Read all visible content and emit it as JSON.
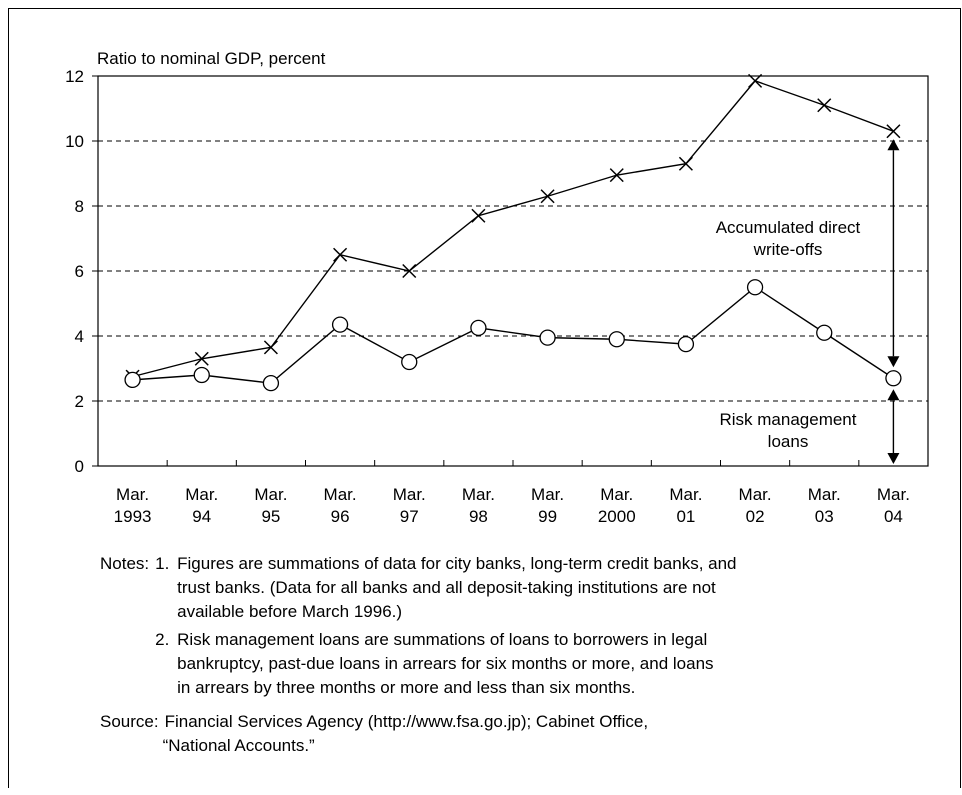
{
  "chart_data": {
    "type": "line",
    "ylabel": "Ratio to nominal GDP, percent",
    "ylim": [
      0,
      12
    ],
    "yticks": [
      0,
      2,
      4,
      6,
      8,
      10,
      12
    ],
    "grid": "horizontal dashed at 2, 4, 6, 8, 10",
    "categories": [
      [
        "Mar.",
        "1993"
      ],
      [
        "Mar.",
        "94"
      ],
      [
        "Mar.",
        "95"
      ],
      [
        "Mar.",
        "96"
      ],
      [
        "Mar.",
        "97"
      ],
      [
        "Mar.",
        "98"
      ],
      [
        "Mar.",
        "99"
      ],
      [
        "Mar.",
        "2000"
      ],
      [
        "Mar.",
        "01"
      ],
      [
        "Mar.",
        "02"
      ],
      [
        "Mar.",
        "03"
      ],
      [
        "Mar.",
        "04"
      ]
    ],
    "series": [
      {
        "marker": "x",
        "values": [
          2.75,
          3.3,
          3.65,
          6.5,
          6.0,
          7.7,
          8.3,
          8.95,
          9.3,
          11.85,
          11.1,
          10.3
        ]
      },
      {
        "marker": "circle",
        "values": [
          2.65,
          2.8,
          2.55,
          4.35,
          3.2,
          4.25,
          3.95,
          3.9,
          3.75,
          5.5,
          4.1,
          2.7
        ]
      }
    ],
    "annotations": {
      "write_offs": [
        "Accumulated direct",
        "write-offs"
      ],
      "risk_loans": [
        "Risk management",
        "loans"
      ]
    },
    "colors": {
      "line": "#000000",
      "grid": "#000000",
      "marker_fill": "#ffffff"
    }
  },
  "notes": {
    "prefix": "Notes:",
    "items": [
      {
        "num": "1.",
        "lines": [
          "Figures are summations of data for city banks, long-term credit banks, and",
          "trust banks. (Data for all banks and all deposit-taking institutions are not",
          "available before March 1996.)"
        ]
      },
      {
        "num": "2.",
        "lines": [
          "Risk management loans are summations of loans to borrowers in legal",
          "bankruptcy, past-due loans in arrears for six months or more, and loans",
          "in arrears by three months or more and less than six months."
        ]
      }
    ]
  },
  "source": {
    "prefix": "Source:",
    "lines": [
      "Financial Services Agency (http://www.fsa.go.jp); Cabinet Office,",
      "“National Accounts.”"
    ]
  }
}
